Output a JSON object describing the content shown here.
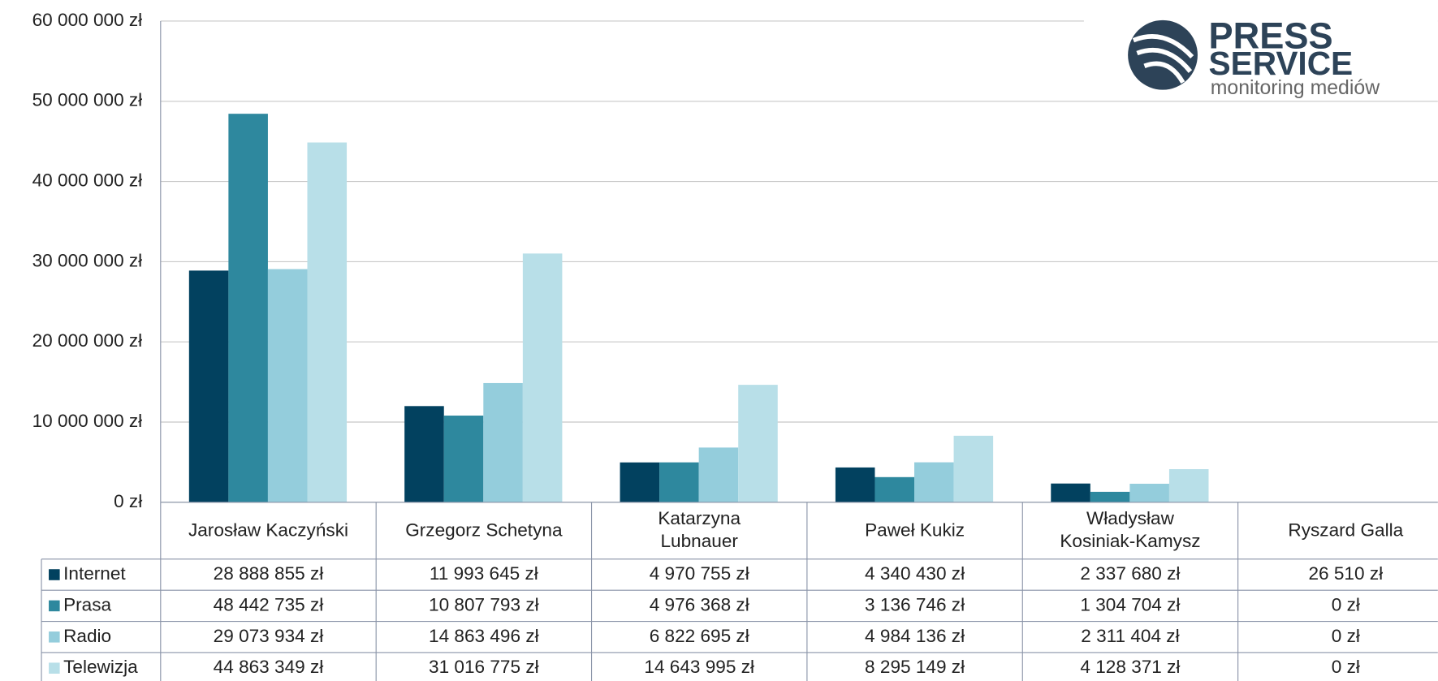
{
  "chart_data": {
    "type": "bar",
    "categories": [
      "Jarosław Kaczyński",
      "Grzegorz Schetyna",
      "Katarzyna\nLubnauer",
      "Paweł Kukiz",
      "Władysław\nKosiniak-Kamysz",
      "Ryszard Galla"
    ],
    "series": [
      {
        "name": "Internet",
        "color": "#02415f",
        "values": [
          28888855,
          11993645,
          4970755,
          4340430,
          2337680,
          26510
        ],
        "value_labels": [
          "28 888 855 zł",
          "11 993 645 zł",
          "4 970 755 zł",
          "4 340 430 zł",
          "2 337 680 zł",
          "26 510 zł"
        ]
      },
      {
        "name": "Prasa",
        "color": "#2e889e",
        "values": [
          48442735,
          10807793,
          4976368,
          3136746,
          1304704,
          0
        ],
        "value_labels": [
          "48 442 735 zł",
          "10 807 793 zł",
          "4 976 368 zł",
          "3 136 746 zł",
          "1 304 704 zł",
          "0 zł"
        ]
      },
      {
        "name": "Radio",
        "color": "#94cddc",
        "values": [
          29073934,
          14863496,
          6822695,
          4984136,
          2311404,
          0
        ],
        "value_labels": [
          "29 073 934 zł",
          "14 863 496 zł",
          "6 822 695 zł",
          "4 984 136 zł",
          "2 311 404 zł",
          "0 zł"
        ]
      },
      {
        "name": "Telewizja",
        "color": "#b8dfe8",
        "values": [
          44863349,
          31016775,
          14643995,
          8295149,
          4128371,
          0
        ],
        "value_labels": [
          "44 863 349 zł",
          "31 016 775 zł",
          "14 643 995 zł",
          "8 295 149 zł",
          "4 128 371 zł",
          "0 zł"
        ]
      }
    ],
    "ylim": [
      0,
      60000000
    ],
    "yticks": [
      {
        "value": 0,
        "label": "0 zł"
      },
      {
        "value": 10000000,
        "label": "10 000 000 zł"
      },
      {
        "value": 20000000,
        "label": "20 000 000 zł"
      },
      {
        "value": 30000000,
        "label": "30 000 000 zł"
      },
      {
        "value": 40000000,
        "label": "40 000 000 zł"
      },
      {
        "value": 50000000,
        "label": "50 000 000 zł"
      },
      {
        "value": 60000000,
        "label": "60 000 000 zł"
      }
    ],
    "grid": true,
    "data_table": true
  },
  "logo": {
    "line1": "PRESS",
    "line2": "SERVICE",
    "line3": "monitoring mediów"
  }
}
